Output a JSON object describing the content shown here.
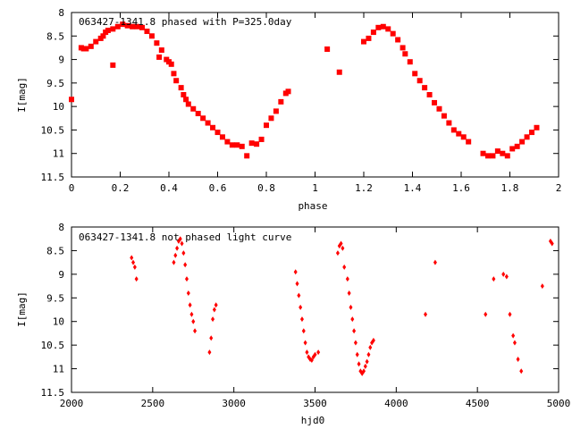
{
  "chart_data": [
    {
      "type": "scatter",
      "title": "063427-1341.8 phased with P=325.0day",
      "xlabel": "phase",
      "ylabel": "I[mag]",
      "xlim": [
        0,
        2
      ],
      "ylim": [
        11.5,
        8
      ],
      "y_inverted": true,
      "grid": false,
      "point_color": "#ff0000",
      "marker": "filled-square",
      "xticks": [
        "0",
        "0.2",
        "0.4",
        "0.6",
        "0.8",
        "1",
        "1.2",
        "1.4",
        "1.6",
        "1.8",
        "2"
      ],
      "yticks": [
        "8",
        "8.5",
        "9",
        "9.5",
        "10",
        "10.5",
        "11",
        "11.5"
      ],
      "x": [
        0.0,
        0.04,
        0.05,
        0.06,
        0.08,
        0.1,
        0.12,
        0.13,
        0.14,
        0.15,
        0.17,
        0.19,
        0.21,
        0.23,
        0.25,
        0.27,
        0.29,
        0.31,
        0.33,
        0.35,
        0.36,
        0.37,
        0.39,
        0.4,
        0.41,
        0.42,
        0.43,
        0.45,
        0.46,
        0.47,
        0.48,
        0.5,
        0.52,
        0.54,
        0.56,
        0.58,
        0.6,
        0.62,
        0.64,
        0.66,
        0.68,
        0.7,
        0.72,
        0.74,
        0.76,
        0.78,
        0.8,
        0.82,
        0.84,
        0.86,
        0.88,
        0.89,
        0.17,
        1.05,
        1.1,
        1.2,
        1.22,
        1.24,
        1.26,
        1.28,
        1.3,
        1.32,
        1.34,
        1.36,
        1.37,
        1.39,
        1.41,
        1.43,
        1.45,
        1.47,
        1.49,
        1.51,
        1.53,
        1.55,
        1.57,
        1.59,
        1.61,
        1.63,
        1.69,
        1.71,
        1.73,
        1.75,
        1.77,
        1.79,
        1.81,
        1.83,
        1.85,
        1.87,
        1.89,
        1.91
      ],
      "y": [
        9.85,
        8.75,
        8.77,
        8.77,
        8.72,
        8.62,
        8.55,
        8.5,
        8.42,
        8.38,
        8.35,
        8.3,
        8.25,
        8.28,
        8.3,
        8.3,
        8.32,
        8.4,
        8.5,
        8.65,
        8.95,
        8.8,
        9.0,
        9.05,
        9.1,
        9.3,
        9.45,
        9.6,
        9.75,
        9.85,
        9.95,
        10.05,
        10.15,
        10.25,
        10.35,
        10.45,
        10.55,
        10.65,
        10.75,
        10.82,
        10.82,
        10.85,
        11.05,
        10.78,
        10.8,
        10.7,
        10.4,
        10.25,
        10.1,
        9.9,
        9.72,
        9.68,
        9.12,
        8.78,
        9.27,
        8.62,
        8.55,
        8.42,
        8.32,
        8.3,
        8.35,
        8.45,
        8.58,
        8.75,
        8.88,
        9.05,
        9.3,
        9.45,
        9.6,
        9.75,
        9.92,
        10.05,
        10.2,
        10.35,
        10.5,
        10.58,
        10.65,
        10.75,
        11.0,
        11.05,
        11.05,
        10.95,
        11.0,
        11.05,
        10.9,
        10.85,
        10.75,
        10.65,
        10.55,
        10.45
      ]
    },
    {
      "type": "scatter",
      "title": "063427-1341.8 not phased light curve",
      "xlabel": "hjd0",
      "ylabel": "I[mag]",
      "xlim": [
        2000,
        5000
      ],
      "ylim": [
        11.5,
        8
      ],
      "y_inverted": true,
      "grid": false,
      "point_color": "#ff0000",
      "marker": "filled-diamond",
      "xticks": [
        "2000",
        "2500",
        "3000",
        "3500",
        "4000",
        "4500",
        "5000"
      ],
      "yticks": [
        "8",
        "8.5",
        "9",
        "9.5",
        "10",
        "10.5",
        "11",
        "11.5"
      ],
      "x": [
        2370,
        2380,
        2390,
        2400,
        2630,
        2640,
        2650,
        2660,
        2670,
        2680,
        2690,
        2700,
        2710,
        2720,
        2730,
        2740,
        2750,
        2760,
        2850,
        2860,
        2870,
        2880,
        2890,
        3380,
        3390,
        3400,
        3410,
        3420,
        3430,
        3440,
        3450,
        3460,
        3470,
        3480,
        3490,
        3500,
        3520,
        3640,
        3650,
        3660,
        3670,
        3680,
        3700,
        3710,
        3720,
        3730,
        3740,
        3750,
        3760,
        3770,
        3780,
        3790,
        3800,
        3810,
        3820,
        3830,
        3840,
        3850,
        3860,
        4180,
        4240,
        4550,
        4600,
        4660,
        4680,
        4700,
        4720,
        4730,
        4750,
        4770,
        4900,
        4950,
        4960
      ],
      "y": [
        8.65,
        8.75,
        8.85,
        9.1,
        8.75,
        8.6,
        8.45,
        8.3,
        8.25,
        8.35,
        8.55,
        8.8,
        9.1,
        9.4,
        9.65,
        9.85,
        10.0,
        10.2,
        10.65,
        10.35,
        9.95,
        9.75,
        9.65,
        8.95,
        9.2,
        9.45,
        9.7,
        9.95,
        10.2,
        10.45,
        10.65,
        10.75,
        10.8,
        10.82,
        10.75,
        10.7,
        10.65,
        8.55,
        8.4,
        8.35,
        8.45,
        8.85,
        9.1,
        9.4,
        9.7,
        9.95,
        10.2,
        10.45,
        10.7,
        10.9,
        11.05,
        11.1,
        11.05,
        10.95,
        10.85,
        10.7,
        10.55,
        10.45,
        10.4,
        9.85,
        8.75,
        9.85,
        9.1,
        9.0,
        9.05,
        9.85,
        10.3,
        10.45,
        10.8,
        11.05,
        9.25,
        8.3,
        8.35
      ]
    }
  ]
}
